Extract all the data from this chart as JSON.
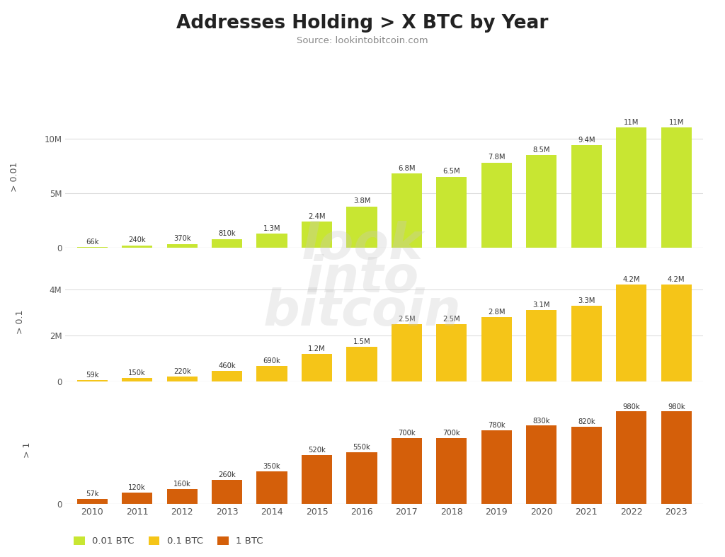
{
  "title": "Addresses Holding > X BTC by Year",
  "source": "Source: lookintobitcoin.com",
  "years": [
    2010,
    2011,
    2012,
    2013,
    2014,
    2015,
    2016,
    2017,
    2018,
    2019,
    2020,
    2021,
    2022,
    2023
  ],
  "data_001": [
    66000,
    240000,
    370000,
    810000,
    1300000,
    2400000,
    3800000,
    6800000,
    6500000,
    7800000,
    8500000,
    9400000,
    11000000,
    11000000
  ],
  "data_01": [
    59000,
    150000,
    220000,
    460000,
    690000,
    1200000,
    1500000,
    2500000,
    2500000,
    2800000,
    3100000,
    3300000,
    4200000,
    4200000
  ],
  "data_1": [
    57000,
    120000,
    160000,
    260000,
    350000,
    520000,
    550000,
    700000,
    700000,
    780000,
    830000,
    820000,
    980000,
    980000
  ],
  "labels_001": [
    "66k",
    "240k",
    "370k",
    "810k",
    "1.3M",
    "2.4M",
    "3.8M",
    "6.8M",
    "6.5M",
    "7.8M",
    "8.5M",
    "9.4M",
    "11M",
    "11M"
  ],
  "labels_01": [
    "59k",
    "150k",
    "220k",
    "460k",
    "690k",
    "1.2M",
    "1.5M",
    "2.5M",
    "2.5M",
    "2.8M",
    "3.1M",
    "3.3M",
    "4.2M",
    "4.2M"
  ],
  "labels_1": [
    "57k",
    "120k",
    "160k",
    "260k",
    "350k",
    "520k",
    "550k",
    "700k",
    "700k",
    "780k",
    "830k",
    "820k",
    "980k",
    "980k"
  ],
  "color_001": "#c8e632",
  "color_01": "#f5c518",
  "color_1": "#d45f0a",
  "background_color": "#ffffff",
  "panel_background": "#ffffff",
  "ylabel_001": "> 0.01",
  "ylabel_01": "> 0.1",
  "ylabel_1": "> 1",
  "legend_labels": [
    "0.01 BTC",
    "0.1 BTC",
    "1 BTC"
  ],
  "watermark_lines": [
    "look",
    "into",
    "bitcoin"
  ],
  "ylim_001": 13000000,
  "ylim_01": 5200000,
  "ylim_1": 1150000,
  "yticks_001": [
    0,
    5000000,
    10000000
  ],
  "ytick_labels_001": [
    "0",
    "5M",
    "10M"
  ],
  "yticks_01": [
    0,
    2000000,
    4000000
  ],
  "ytick_labels_01": [
    "0",
    "2M",
    "4M"
  ],
  "yticks_1": [
    0
  ],
  "ytick_labels_1": [
    "0"
  ]
}
